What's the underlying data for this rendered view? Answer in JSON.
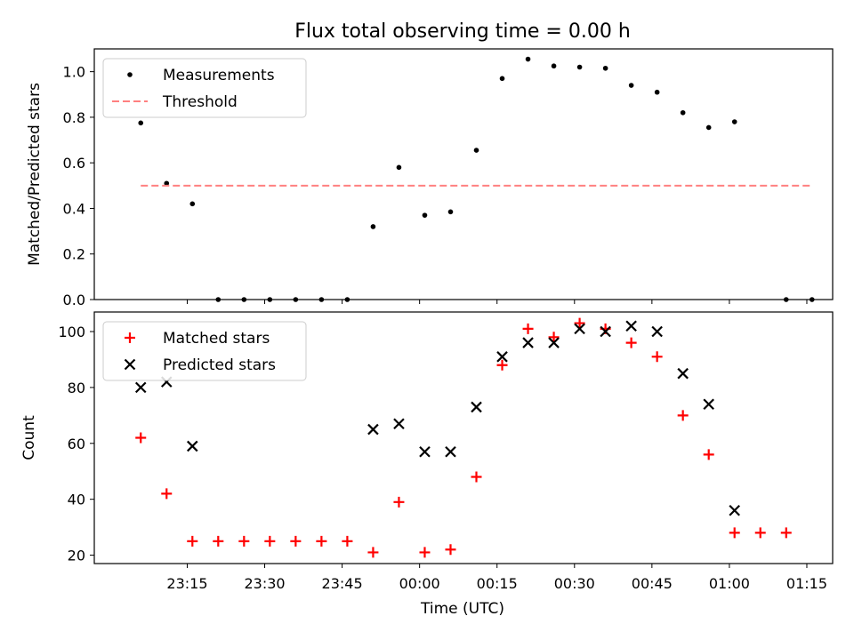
{
  "chart_data": {
    "title": "Flux total observing time = 0.00 h",
    "xlabel": "Time (UTC)",
    "x_ticks": [
      "23:15",
      "23:30",
      "23:45",
      "00:00",
      "00:15",
      "00:30",
      "00:45",
      "01:00",
      "01:15"
    ],
    "x_tick_minutes": [
      -45,
      -30,
      -15,
      0,
      15,
      30,
      45,
      60,
      75
    ],
    "xlim_minutes": [
      -63,
      80
    ],
    "times": [
      "23:06",
      "23:11",
      "23:16",
      "23:21",
      "23:26",
      "23:31",
      "23:36",
      "23:41",
      "23:46",
      "23:51",
      "23:56",
      "00:01",
      "00:06",
      "00:11",
      "00:16",
      "00:21",
      "00:26",
      "00:31",
      "00:36",
      "00:41",
      "00:46",
      "00:51",
      "00:56",
      "01:01",
      "01:06",
      "01:11",
      "01:16"
    ],
    "panels": [
      {
        "type": "scatter",
        "ylabel": "Matched/Predicted stars",
        "ylim": [
          0,
          1.1
        ],
        "y_ticks": [
          0.0,
          0.2,
          0.4,
          0.6,
          0.8,
          1.0
        ],
        "y_tick_labels": [
          "0.0",
          "0.2",
          "0.4",
          "0.6",
          "0.8",
          "1.0"
        ],
        "legend": "top-left",
        "series": [
          {
            "name": "Measurements",
            "marker": "dot",
            "color": "#000000",
            "values": [
              0.775,
              0.51,
              0.42,
              0.0,
              0.0,
              0.0,
              0.0,
              0.0,
              0.0,
              0.32,
              0.58,
              0.37,
              0.385,
              0.655,
              0.97,
              1.055,
              1.025,
              1.02,
              1.015,
              0.94,
              0.91,
              0.82,
              0.755,
              0.78,
              null,
              0.0,
              0.0
            ]
          },
          {
            "name": "Threshold",
            "marker": "dashed-line",
            "color": "#ff8080",
            "values": [
              0.5,
              0.5
            ]
          }
        ]
      },
      {
        "type": "scatter",
        "ylabel": "Count",
        "ylim": [
          17,
          107
        ],
        "y_ticks": [
          20,
          40,
          60,
          80,
          100
        ],
        "y_tick_labels": [
          "20",
          "40",
          "60",
          "80",
          "100"
        ],
        "legend": "top-left",
        "series": [
          {
            "name": "Matched stars",
            "marker": "plus",
            "color": "#ff0000",
            "values": [
              62,
              42,
              25,
              25,
              25,
              25,
              25,
              25,
              25,
              21,
              39,
              21,
              22,
              48,
              88,
              101,
              98,
              103,
              101,
              96,
              91,
              70,
              56,
              28,
              28,
              28,
              null
            ]
          },
          {
            "name": "Predicted stars",
            "marker": "x",
            "color": "#000000",
            "values": [
              80,
              82,
              59,
              null,
              null,
              null,
              null,
              null,
              null,
              65,
              67,
              57,
              57,
              73,
              91,
              96,
              96,
              101,
              100,
              102,
              100,
              85,
              74,
              36,
              null,
              null,
              null
            ]
          }
        ]
      }
    ]
  }
}
